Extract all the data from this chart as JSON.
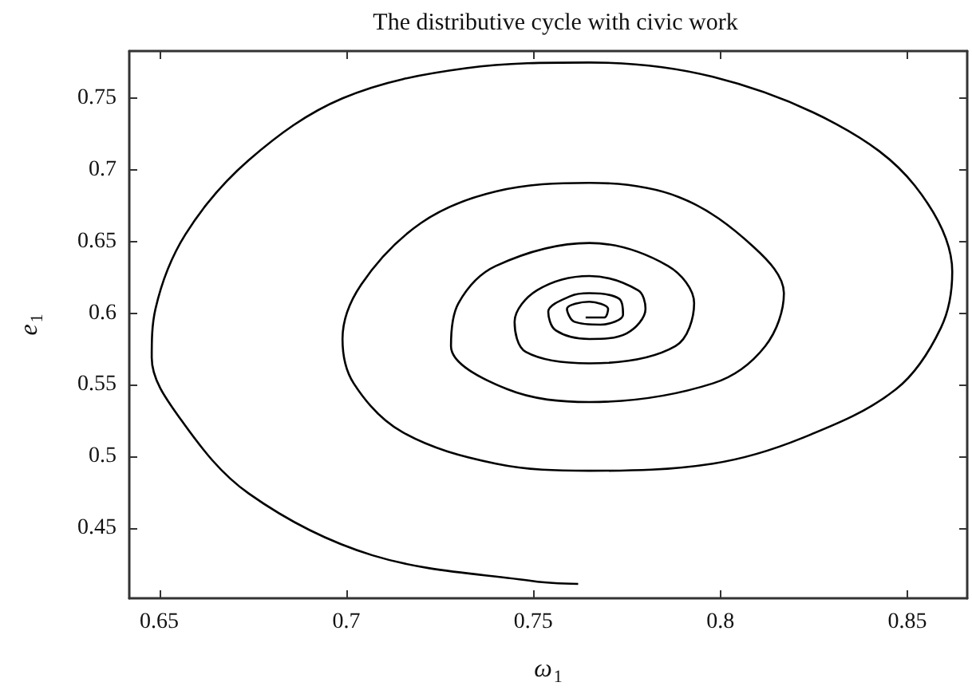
{
  "chart_data": {
    "type": "line",
    "title": "The distributive cycle with civic work",
    "xlabel": "ω$_{1}$",
    "ylabel": "e$_{1}$",
    "xlim": [
      0.642,
      0.866
    ],
    "ylim": [
      0.401,
      0.783
    ],
    "xticks": [
      0.65,
      0.7,
      0.75,
      0.8,
      0.85
    ],
    "yticks": [
      0.45,
      0.5,
      0.55,
      0.6,
      0.65,
      0.7,
      0.75
    ],
    "grid": false,
    "marker": "none",
    "line_style": "solid",
    "series": [
      {
        "color": "#000000",
        "x": [
          0.762,
          0.75,
          0.707,
          0.674,
          0.656,
          0.648,
          0.649,
          0.657,
          0.674,
          0.699,
          0.732,
          0.765,
          0.798,
          0.831,
          0.852,
          0.862,
          0.859,
          0.847,
          0.822,
          0.798,
          0.765,
          0.74,
          0.715,
          0.702,
          0.699,
          0.704,
          0.72,
          0.74,
          0.765,
          0.789,
          0.809,
          0.817,
          0.812,
          0.798,
          0.765,
          0.743,
          0.728,
          0.73,
          0.74,
          0.765,
          0.786,
          0.793,
          0.788,
          0.765,
          0.748,
          0.745,
          0.751,
          0.765,
          0.778,
          0.78,
          0.775,
          0.765,
          0.756,
          0.754,
          0.76,
          0.765,
          0.773,
          0.774,
          0.768,
          0.761,
          0.759,
          0.765,
          0.77,
          0.769,
          0.764
        ],
        "values": [
          0.411,
          0.413,
          0.431,
          0.474,
          0.525,
          0.569,
          0.603,
          0.655,
          0.707,
          0.75,
          0.771,
          0.775,
          0.765,
          0.732,
          0.689,
          0.629,
          0.59,
          0.547,
          0.513,
          0.495,
          0.49,
          0.495,
          0.517,
          0.551,
          0.582,
          0.62,
          0.663,
          0.685,
          0.691,
          0.681,
          0.646,
          0.614,
          0.577,
          0.551,
          0.538,
          0.547,
          0.577,
          0.607,
          0.633,
          0.649,
          0.633,
          0.607,
          0.577,
          0.565,
          0.573,
          0.594,
          0.616,
          0.626,
          0.616,
          0.603,
          0.586,
          0.582,
          0.588,
          0.601,
          0.612,
          0.614,
          0.61,
          0.599,
          0.592,
          0.594,
          0.603,
          0.608,
          0.603,
          0.597,
          0.597
        ]
      }
    ]
  }
}
